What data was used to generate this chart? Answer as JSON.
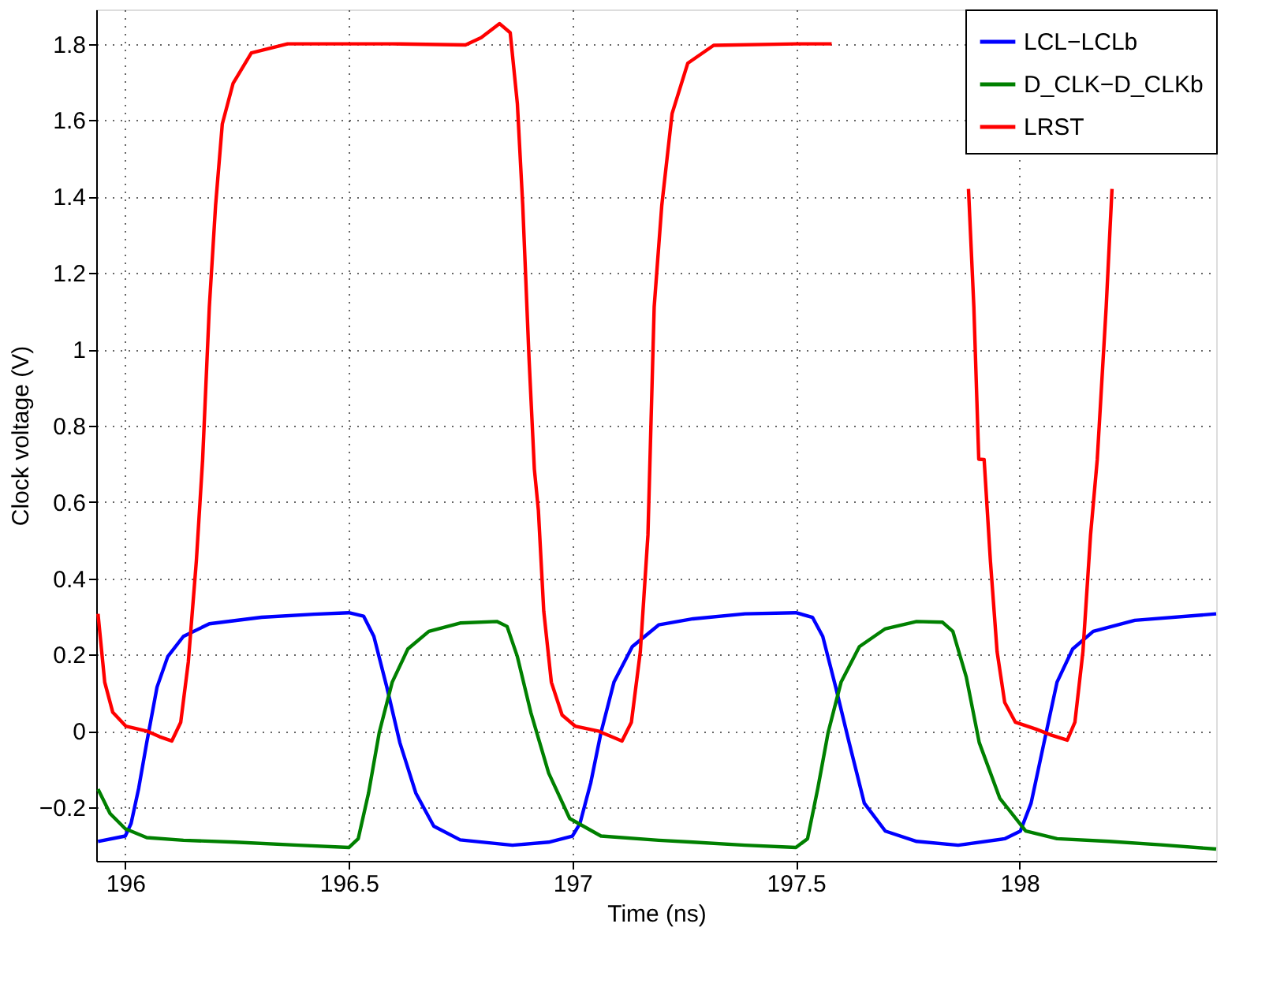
{
  "chart_data": {
    "type": "line",
    "xlabel": "Time (ns)",
    "ylabel": "Clock voltage (V)",
    "xlim": [
      195.935,
      198.44
    ],
    "ylim": [
      -0.34,
      1.89
    ],
    "xticks": [
      196,
      196.5,
      197,
      197.5,
      198
    ],
    "yticks": [
      -0.2,
      0,
      0.2,
      0.4,
      0.6,
      0.8,
      1,
      1.2,
      1.4,
      1.6,
      1.8
    ],
    "grid": true,
    "legend": "top right",
    "line_style": "solid",
    "marker": "none",
    "series": [
      {
        "name": "LCL−LCLb",
        "color": "#0000ff",
        "x": [
          195.939,
          196.0,
          196.013,
          196.03,
          196.048,
          196.071,
          196.095,
          196.13,
          196.188,
          196.305,
          196.422,
          196.5,
          196.533,
          196.556,
          196.585,
          196.614,
          196.65,
          196.69,
          196.749,
          196.866,
          196.947,
          197.0,
          197.017,
          197.041,
          197.064,
          197.093,
          197.134,
          197.193,
          197.27,
          197.386,
          197.5,
          197.537,
          197.56,
          197.589,
          197.619,
          197.653,
          197.7,
          197.77,
          197.863,
          197.967,
          198.002,
          198.026,
          198.055,
          198.084,
          198.119,
          198.165,
          198.258,
          198.44
        ],
        "values": [
          -0.289,
          -0.275,
          -0.242,
          -0.15,
          -0.03,
          0.115,
          0.195,
          0.248,
          0.281,
          0.298,
          0.306,
          0.31,
          0.301,
          0.248,
          0.115,
          -0.03,
          -0.163,
          -0.249,
          -0.285,
          -0.299,
          -0.291,
          -0.275,
          -0.242,
          -0.136,
          -0.004,
          0.128,
          0.221,
          0.278,
          0.294,
          0.307,
          0.31,
          0.298,
          0.248,
          0.115,
          -0.03,
          -0.189,
          -0.262,
          -0.289,
          -0.299,
          -0.282,
          -0.262,
          -0.189,
          -0.03,
          0.128,
          0.215,
          0.261,
          0.29,
          0.307
        ]
      },
      {
        "name": "D_CLK−D_CLKb",
        "color": "#008000",
        "x": [
          195.939,
          195.966,
          196.0,
          196.048,
          196.13,
          196.246,
          196.387,
          196.5,
          196.521,
          196.544,
          196.568,
          196.597,
          196.632,
          196.679,
          196.749,
          196.831,
          196.854,
          196.877,
          196.907,
          196.947,
          196.994,
          197.064,
          197.193,
          197.27,
          197.386,
          197.5,
          197.526,
          197.549,
          197.572,
          197.601,
          197.642,
          197.7,
          197.77,
          197.828,
          197.851,
          197.881,
          197.91,
          197.956,
          198.014,
          198.084,
          198.2,
          198.316,
          198.44
        ],
        "values": [
          -0.152,
          -0.216,
          -0.256,
          -0.279,
          -0.286,
          -0.291,
          -0.299,
          -0.305,
          -0.282,
          -0.163,
          -0.004,
          0.128,
          0.215,
          0.261,
          0.283,
          0.287,
          0.274,
          0.195,
          0.049,
          -0.11,
          -0.229,
          -0.275,
          -0.286,
          -0.291,
          -0.299,
          -0.305,
          -0.282,
          -0.15,
          -0.004,
          0.128,
          0.221,
          0.268,
          0.287,
          0.285,
          0.261,
          0.142,
          -0.03,
          -0.176,
          -0.262,
          -0.282,
          -0.289,
          -0.298,
          -0.309
        ]
      },
      {
        "name": "LRST",
        "color": "#ff0000",
        "x": [
          195.939,
          195.954,
          195.972,
          196.001,
          196.048,
          196.077,
          196.104,
          196.124,
          196.141,
          196.159,
          196.173,
          196.188,
          196.202,
          196.217,
          196.241,
          196.282,
          196.363,
          196.597,
          196.761,
          196.796,
          196.837,
          196.861,
          196.877,
          196.889,
          196.903,
          196.915,
          196.924,
          196.936,
          196.953,
          196.977,
          197.006,
          197.058,
          197.088,
          197.111,
          197.132,
          197.152,
          197.169,
          197.183,
          197.2,
          197.223,
          197.258,
          197.316,
          197.502,
          197.58,
          197.74,
          197.886,
          197.898,
          197.909,
          197.921,
          197.935,
          197.95,
          197.967,
          197.991,
          198.037,
          198.072,
          198.107,
          198.124,
          198.142,
          198.159,
          198.174,
          198.194,
          198.207
        ],
        "values": [
          0.307,
          0.128,
          0.049,
          0.013,
          0.0,
          -0.015,
          -0.026,
          0.023,
          0.181,
          0.446,
          0.711,
          1.111,
          1.377,
          1.59,
          1.696,
          1.776,
          1.8,
          1.8,
          1.797,
          1.816,
          1.853,
          1.829,
          1.643,
          1.377,
          0.978,
          0.686,
          0.578,
          0.314,
          0.128,
          0.042,
          0.013,
          0.0,
          -0.015,
          -0.026,
          0.023,
          0.208,
          0.513,
          1.111,
          1.377,
          1.617,
          1.749,
          1.796,
          1.8,
          1.8,
          null,
          1.42,
          1.111,
          0.712,
          0.711,
          0.446,
          0.208,
          0.075,
          0.023,
          0.005,
          -0.011,
          -0.024,
          0.023,
          0.208,
          0.513,
          0.711,
          1.111,
          1.42
        ]
      }
    ]
  }
}
